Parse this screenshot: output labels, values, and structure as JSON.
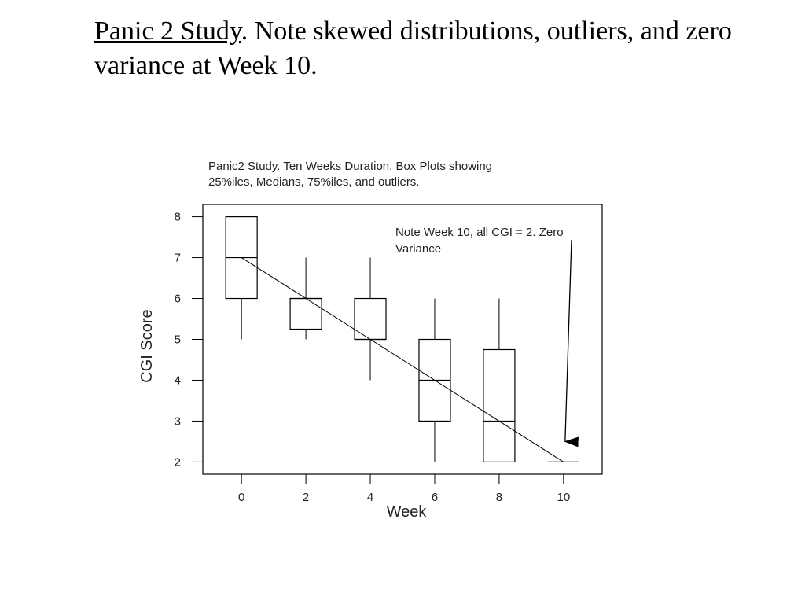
{
  "slide": {
    "title_underlined": "Panic 2 Study",
    "title_rest": ".  Note skewed distributions, outliers, and zero variance at Week 10."
  },
  "chart_data": {
    "type": "box",
    "title": "Panic2 Study.  Ten Weeks Duration.  Box Plots showing 25%iles, Medians, 75%iles, and outliers.",
    "title_lines": [
      "Panic2 Study.  Ten Weeks Duration.  Box Plots showing",
      "25%iles, Medians, 75%iles, and outliers."
    ],
    "xlabel": "Week",
    "ylabel": "CGI Score",
    "xticks": [
      0,
      2,
      4,
      6,
      8,
      10
    ],
    "yticks": [
      2,
      3,
      4,
      5,
      6,
      7,
      8
    ],
    "xlim": [
      -1.2,
      11.2
    ],
    "ylim": [
      1.7,
      8.3
    ],
    "boxes": [
      {
        "week": 0,
        "min": 5,
        "q1": 6,
        "median": 7,
        "q3": 8,
        "max": 8
      },
      {
        "week": 2,
        "min": 5,
        "q1": 5.25,
        "median": 6,
        "q3": 6,
        "max": 7
      },
      {
        "week": 4,
        "min": 4,
        "q1": 5,
        "median": 5,
        "q3": 6,
        "max": 7
      },
      {
        "week": 6,
        "min": 2,
        "q1": 3,
        "median": 4,
        "q3": 5,
        "max": 6
      },
      {
        "week": 8,
        "min": 2,
        "q1": 2,
        "median": 3,
        "q3": 4.75,
        "max": 6
      },
      {
        "week": 10,
        "min": 2,
        "q1": 2,
        "median": 2,
        "q3": 2,
        "max": 2
      }
    ],
    "trend_line": {
      "from": [
        0,
        7
      ],
      "to": [
        10,
        2
      ]
    },
    "annotation": {
      "lines": [
        "Note Week 10, all CGI = 2.  Zero",
        "Variance"
      ],
      "arrow_target": [
        10,
        2.5
      ]
    },
    "grid": false
  }
}
